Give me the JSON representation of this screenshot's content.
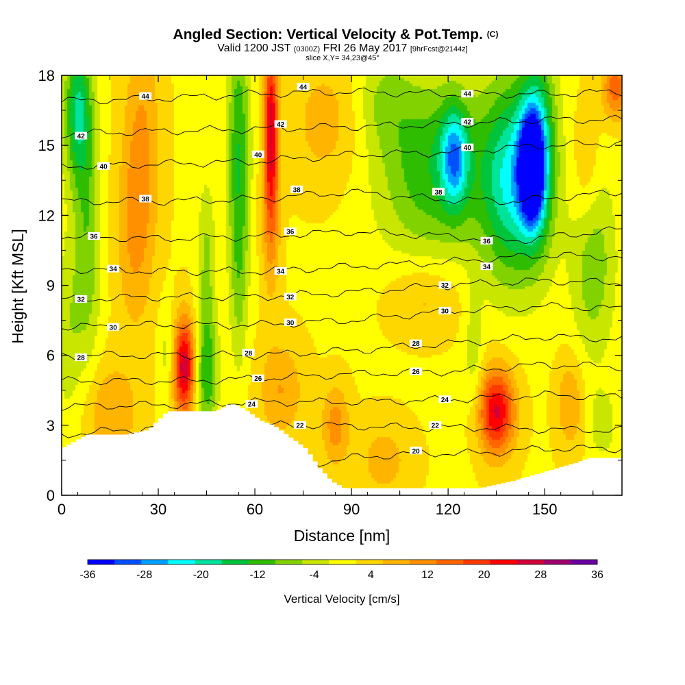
{
  "chart_data": {
    "type": "heatmap",
    "title": "Angled Section: Vertical Velocity & Pot.Temp.",
    "title_mark": "(C)",
    "subtitle_parts": [
      "Valid 1200 JST",
      "(0300Z)",
      "FRI 26 May 2017",
      "[9hrFcst@2144z]"
    ],
    "slice_label": "slice X,Y= 34,23@45°",
    "xlabel": "Distance [nm]",
    "ylabel": "Height [Kft MSL]",
    "xlim": [
      0,
      174
    ],
    "ylim": [
      0,
      18
    ],
    "x_ticks": [
      "0",
      "30",
      "60",
      "90",
      "120",
      "150"
    ],
    "x_tick_values": [
      0,
      30,
      60,
      90,
      120,
      150
    ],
    "y_ticks": [
      "0",
      "3",
      "6",
      "9",
      "12",
      "15",
      "18"
    ],
    "y_tick_values": [
      0,
      3,
      6,
      9,
      12,
      15,
      18
    ],
    "colorbar": {
      "label": "Vertical Velocity [cm/s]",
      "tick_labels": [
        "-36",
        "-28",
        "-20",
        "-12",
        "-4",
        "4",
        "12",
        "20",
        "28",
        "36"
      ],
      "colors": [
        "#0000ff",
        "#0050ff",
        "#00a0ff",
        "#00ffff",
        "#00e39b",
        "#00c43c",
        "#2ebd00",
        "#82d200",
        "#c8e600",
        "#ffff00",
        "#ffd700",
        "#ffb400",
        "#ff9000",
        "#ff6600",
        "#ff3a00",
        "#ff0000",
        "#d20036",
        "#a0006e",
        "#6b00a0"
      ]
    },
    "vertical_velocity_features": [
      {
        "x": 5,
        "y": 16.5,
        "value": -18,
        "sx": 3,
        "sy": 2.2
      },
      {
        "x": 8,
        "y": 11,
        "value": -10,
        "sx": 3,
        "sy": 4
      },
      {
        "x": 2,
        "y": 7,
        "value": -6,
        "sx": 3,
        "sy": 3
      },
      {
        "x": 25,
        "y": 15,
        "value": 8,
        "sx": 4,
        "sy": 4
      },
      {
        "x": 22,
        "y": 11,
        "value": 6,
        "sx": 4,
        "sy": 3
      },
      {
        "x": 15,
        "y": 3.5,
        "value": 8,
        "sx": 6,
        "sy": 1.5
      },
      {
        "x": 38,
        "y": 5.5,
        "value": 26,
        "sx": 2.5,
        "sy": 1.5
      },
      {
        "x": 45,
        "y": 5.2,
        "value": -14,
        "sx": 2.5,
        "sy": 1.8
      },
      {
        "x": 45,
        "y": 10,
        "value": -8,
        "sx": 2,
        "sy": 2.5
      },
      {
        "x": 55,
        "y": 15,
        "value": -14,
        "sx": 2.5,
        "sy": 4
      },
      {
        "x": 55,
        "y": 9,
        "value": -6,
        "sx": 2,
        "sy": 3
      },
      {
        "x": 65,
        "y": 16,
        "value": 22,
        "sx": 1.5,
        "sy": 2.5
      },
      {
        "x": 65,
        "y": 12,
        "value": 10,
        "sx": 2,
        "sy": 2.5
      },
      {
        "x": 68,
        "y": 4.5,
        "value": 8,
        "sx": 5,
        "sy": 1.5
      },
      {
        "x": 85,
        "y": 3,
        "value": 10,
        "sx": 3,
        "sy": 1.2
      },
      {
        "x": 82,
        "y": 16,
        "value": 6,
        "sx": 8,
        "sy": 2
      },
      {
        "x": 100,
        "y": 17,
        "value": -6,
        "sx": 6,
        "sy": 1.5
      },
      {
        "x": 115,
        "y": 14,
        "value": -14,
        "sx": 12,
        "sy": 2.8
      },
      {
        "x": 122,
        "y": 14.5,
        "value": -20,
        "sx": 3,
        "sy": 1.5
      },
      {
        "x": 140,
        "y": 13.5,
        "value": -22,
        "sx": 7,
        "sy": 3
      },
      {
        "x": 146,
        "y": 14,
        "value": -36,
        "sx": 2.5,
        "sy": 1.5
      },
      {
        "x": 148,
        "y": 15,
        "value": -16,
        "sx": 4,
        "sy": 3
      },
      {
        "x": 165,
        "y": 10,
        "value": -10,
        "sx": 5,
        "sy": 3
      },
      {
        "x": 163,
        "y": 14,
        "value": 6,
        "sx": 3,
        "sy": 2
      },
      {
        "x": 172,
        "y": 17.5,
        "value": 14,
        "sx": 3,
        "sy": 1
      },
      {
        "x": 113,
        "y": 8.5,
        "value": 6,
        "sx": 8,
        "sy": 1.2
      },
      {
        "x": 135,
        "y": 3.6,
        "value": 24,
        "sx": 4,
        "sy": 1.3
      },
      {
        "x": 128,
        "y": 6,
        "value": -6,
        "sx": 2,
        "sy": 2
      },
      {
        "x": 158,
        "y": 4,
        "value": 8,
        "sx": 3,
        "sy": 1.5
      },
      {
        "x": 168,
        "y": 3,
        "value": -6,
        "sx": 3,
        "sy": 1
      },
      {
        "x": 33,
        "y": 6,
        "value": -6,
        "sx": 2,
        "sy": 1.5
      },
      {
        "x": 100,
        "y": 1.5,
        "value": 6,
        "sx": 6,
        "sy": 1.2
      }
    ],
    "terrain_height": {
      "x": [
        0,
        4,
        8,
        12,
        20,
        27,
        30,
        33,
        36,
        38,
        42,
        48,
        52,
        54,
        58,
        62,
        66,
        72,
        76,
        80,
        84,
        88,
        92,
        100,
        110,
        120,
        130,
        140,
        150,
        155,
        160,
        164,
        170,
        174
      ],
      "y": [
        2,
        2.3,
        2.6,
        2.6,
        2.6,
        2.8,
        3.2,
        3.6,
        3.6,
        3.6,
        3.6,
        3.6,
        3.9,
        3.9,
        3.6,
        3.2,
        3.0,
        2.4,
        2.0,
        1.2,
        0.6,
        0.3,
        0.3,
        0.3,
        0.3,
        0.3,
        0.3,
        0.6,
        1.0,
        1.2,
        1.4,
        1.6,
        1.6,
        1.6
      ]
    },
    "isotherms": [
      {
        "level": 20,
        "points": [
          [
            0,
            0.8
          ],
          [
            60,
            1.0
          ],
          [
            90,
            1.6
          ],
          [
            110,
            1.8
          ],
          [
            130,
            1.8
          ],
          [
            150,
            2.0
          ],
          [
            174,
            2.0
          ]
        ]
      },
      {
        "level": 22,
        "points": [
          [
            0,
            2.6
          ],
          [
            40,
            3.0
          ],
          [
            80,
            3.0
          ],
          [
            110,
            2.9
          ],
          [
            130,
            2.9
          ],
          [
            160,
            2.8
          ],
          [
            174,
            2.8
          ]
        ]
      },
      {
        "level": 24,
        "points": [
          [
            0,
            3.8
          ],
          [
            40,
            3.9
          ],
          [
            60,
            4.0
          ],
          [
            90,
            4.0
          ],
          [
            120,
            4.1
          ],
          [
            150,
            4.3
          ],
          [
            174,
            4.2
          ]
        ]
      },
      {
        "level": 26,
        "points": [
          [
            0,
            4.9
          ],
          [
            40,
            4.9
          ],
          [
            60,
            5.0
          ],
          [
            90,
            5.2
          ],
          [
            120,
            5.3
          ],
          [
            150,
            5.6
          ],
          [
            174,
            5.5
          ]
        ]
      },
      {
        "level": 28,
        "points": [
          [
            0,
            6.0
          ],
          [
            30,
            6.0
          ],
          [
            60,
            6.0
          ],
          [
            90,
            6.2
          ],
          [
            120,
            6.5
          ],
          [
            150,
            6.8
          ],
          [
            174,
            6.7
          ]
        ]
      },
      {
        "level": 30,
        "points": [
          [
            0,
            7.2
          ],
          [
            30,
            7.3
          ],
          [
            60,
            7.3
          ],
          [
            90,
            7.5
          ],
          [
            120,
            7.9
          ],
          [
            150,
            8.1
          ],
          [
            174,
            8.0
          ]
        ]
      },
      {
        "level": 32,
        "points": [
          [
            0,
            8.4
          ],
          [
            30,
            8.5
          ],
          [
            60,
            8.5
          ],
          [
            90,
            8.7
          ],
          [
            120,
            9.0
          ],
          [
            150,
            9.2
          ],
          [
            174,
            9.1
          ]
        ]
      },
      {
        "level": 34,
        "points": [
          [
            0,
            9.7
          ],
          [
            30,
            9.6
          ],
          [
            60,
            9.6
          ],
          [
            90,
            9.8
          ],
          [
            120,
            10.0
          ],
          [
            150,
            10.3
          ],
          [
            174,
            10.2
          ]
        ]
      },
      {
        "level": 36,
        "points": [
          [
            0,
            11.1
          ],
          [
            30,
            11.0
          ],
          [
            60,
            11.1
          ],
          [
            90,
            11.3
          ],
          [
            120,
            11.1
          ],
          [
            140,
            10.9
          ],
          [
            174,
            11.4
          ]
        ]
      },
      {
        "level": 38,
        "points": [
          [
            0,
            12.6
          ],
          [
            30,
            12.6
          ],
          [
            60,
            12.7
          ],
          [
            90,
            13.0
          ],
          [
            115,
            12.7
          ],
          [
            140,
            12.6
          ],
          [
            174,
            13.0
          ]
        ]
      },
      {
        "level": 40,
        "points": [
          [
            0,
            14.1
          ],
          [
            30,
            14.2
          ],
          [
            60,
            14.3
          ],
          [
            90,
            14.6
          ],
          [
            120,
            14.7
          ],
          [
            150,
            15.0
          ],
          [
            174,
            15.1
          ]
        ]
      },
      {
        "level": 42,
        "points": [
          [
            0,
            15.5
          ],
          [
            30,
            15.6
          ],
          [
            60,
            15.7
          ],
          [
            90,
            15.8
          ],
          [
            120,
            15.9
          ],
          [
            150,
            16.1
          ],
          [
            174,
            16.1
          ]
        ]
      },
      {
        "level": 44,
        "points": [
          [
            0,
            16.9
          ],
          [
            30,
            17.0
          ],
          [
            60,
            17.2
          ],
          [
            90,
            17.3
          ],
          [
            120,
            17.2
          ],
          [
            150,
            17.2
          ],
          [
            174,
            17.3
          ]
        ]
      }
    ],
    "contour_labels": [
      {
        "text": "44",
        "x": 26,
        "y": 17.1
      },
      {
        "text": "44",
        "x": 75,
        "y": 17.5
      },
      {
        "text": "44",
        "x": 126,
        "y": 17.2
      },
      {
        "text": "42",
        "x": 6,
        "y": 15.4
      },
      {
        "text": "42",
        "x": 68,
        "y": 15.9
      },
      {
        "text": "42",
        "x": 126,
        "y": 16.0
      },
      {
        "text": "40",
        "x": 13,
        "y": 14.1
      },
      {
        "text": "40",
        "x": 61,
        "y": 14.6
      },
      {
        "text": "40",
        "x": 126,
        "y": 14.9
      },
      {
        "text": "38",
        "x": 26,
        "y": 12.7
      },
      {
        "text": "38",
        "x": 73,
        "y": 13.1
      },
      {
        "text": "38",
        "x": 117,
        "y": 13.0
      },
      {
        "text": "36",
        "x": 10,
        "y": 11.1
      },
      {
        "text": "36",
        "x": 71,
        "y": 11.3
      },
      {
        "text": "36",
        "x": 132,
        "y": 10.9
      },
      {
        "text": "34",
        "x": 16,
        "y": 9.7
      },
      {
        "text": "34",
        "x": 68,
        "y": 9.6
      },
      {
        "text": "34",
        "x": 132,
        "y": 9.8
      },
      {
        "text": "32",
        "x": 6,
        "y": 8.4
      },
      {
        "text": "32",
        "x": 71,
        "y": 8.5
      },
      {
        "text": "32",
        "x": 119,
        "y": 9.0
      },
      {
        "text": "30",
        "x": 16,
        "y": 7.2
      },
      {
        "text": "30",
        "x": 71,
        "y": 7.4
      },
      {
        "text": "30",
        "x": 119,
        "y": 7.9
      },
      {
        "text": "28",
        "x": 6,
        "y": 5.9
      },
      {
        "text": "28",
        "x": 58,
        "y": 6.1
      },
      {
        "text": "28",
        "x": 110,
        "y": 6.5
      },
      {
        "text": "26",
        "x": 61,
        "y": 5.0
      },
      {
        "text": "26",
        "x": 110,
        "y": 5.3
      },
      {
        "text": "24",
        "x": 59,
        "y": 3.9
      },
      {
        "text": "24",
        "x": 119,
        "y": 4.1
      },
      {
        "text": "22",
        "x": 74,
        "y": 3.0
      },
      {
        "text": "22",
        "x": 116,
        "y": 3.0
      },
      {
        "text": "20",
        "x": 110,
        "y": 1.9
      }
    ]
  }
}
